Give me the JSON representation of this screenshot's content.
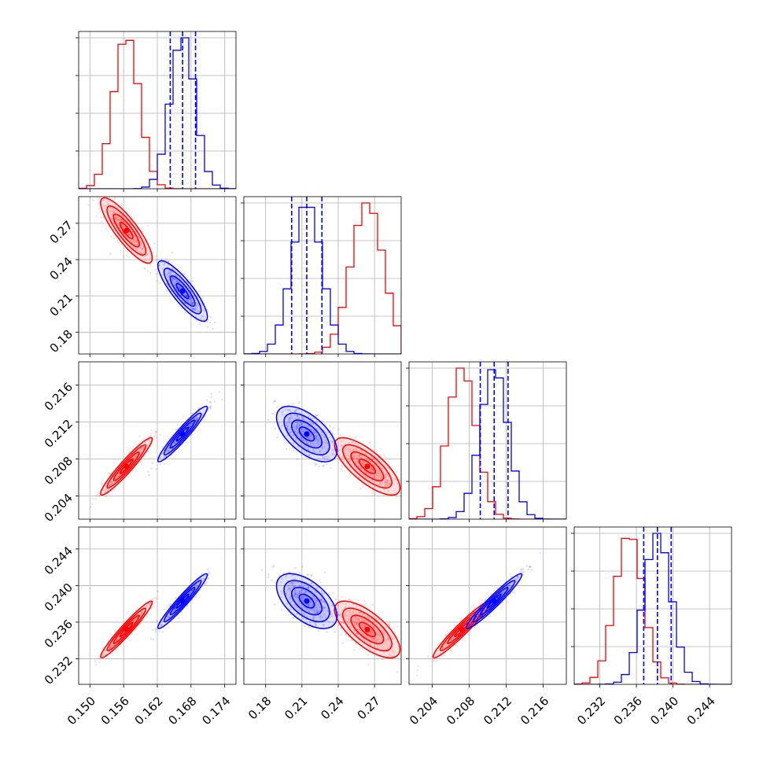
{
  "chart_data": {
    "type": "corner",
    "colors": {
      "red": "#ff0000",
      "blue": "#0000ff",
      "grid": "#b0b0b0"
    },
    "params": [
      {
        "range": [
          0.148,
          0.176
        ],
        "ticks": [
          0.15,
          0.156,
          0.162,
          0.168,
          0.174
        ],
        "tick_labels": [
          "0.150",
          "0.156",
          "0.162",
          "0.168",
          "0.174"
        ]
      },
      {
        "range": [
          0.162,
          0.292
        ],
        "ticks": [
          0.18,
          0.21,
          0.24,
          0.27
        ],
        "tick_labels": [
          "0.18",
          "0.21",
          "0.24",
          "0.27"
        ]
      },
      {
        "range": [
          0.2015,
          0.2185
        ],
        "ticks": [
          0.204,
          0.208,
          0.212,
          0.216
        ],
        "tick_labels": [
          "0.204",
          "0.208",
          "0.212",
          "0.216"
        ]
      },
      {
        "range": [
          0.2292,
          0.2464
        ],
        "ticks": [
          0.232,
          0.236,
          0.24,
          0.244
        ],
        "tick_labels": [
          "0.232",
          "0.236",
          "0.240",
          "0.244"
        ]
      }
    ],
    "series": [
      {
        "color": "red",
        "mean": [
          0.1565,
          0.264,
          0.2072,
          0.2352
        ],
        "sd": [
          0.0023,
          0.0135,
          0.00155,
          0.00155
        ],
        "corr": [
          [
            1,
            -0.85,
            0.95,
            0.96
          ],
          [
            -0.85,
            1,
            -0.75,
            -0.7
          ],
          [
            0.95,
            -0.75,
            1,
            0.96
          ],
          [
            0.96,
            -0.7,
            0.96,
            1
          ]
        ]
      },
      {
        "color": "blue",
        "mean": [
          0.1665,
          0.214,
          0.2107,
          0.2383
        ],
        "sd": [
          0.0022,
          0.0125,
          0.0015,
          0.0015
        ],
        "corr": [
          [
            1,
            -0.85,
            0.95,
            0.96
          ],
          [
            -0.85,
            1,
            -0.6,
            -0.55
          ],
          [
            0.95,
            -0.6,
            1,
            0.96
          ],
          [
            0.96,
            -0.55,
            0.96,
            1
          ]
        ]
      }
    ],
    "quantile_lines_blue": [
      [
        0.1643,
        0.1665,
        0.1688
      ],
      [
        0.2015,
        0.214,
        0.2265
      ],
      [
        0.2092,
        0.2107,
        0.2122
      ],
      [
        0.2368,
        0.2383,
        0.2398
      ]
    ],
    "grid": true
  }
}
